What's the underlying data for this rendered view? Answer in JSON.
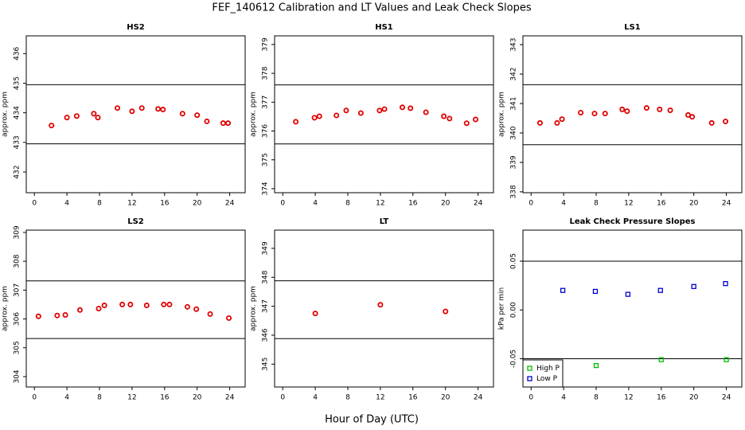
{
  "title": "FEF_140612  Calibration and LT Values and Leak Check Slopes",
  "xlabel": "Hour of Day (UTC)",
  "chart_data": [
    {
      "type": "scatter",
      "title": "HS2",
      "ylabel": "approx. ppm",
      "xlim": [
        -1,
        25.9
      ],
      "xticks": [
        0,
        4,
        8,
        12,
        16,
        20,
        24
      ],
      "ylim": [
        431.3,
        436.6
      ],
      "yticks": [
        432,
        433,
        434,
        435,
        436
      ],
      "hlines": [
        434.95,
        432.95
      ],
      "series": [
        {
          "color": "#e00000",
          "marker": "circle",
          "x": [
            2.1,
            4.0,
            5.2,
            7.3,
            7.8,
            10.2,
            12.0,
            13.2,
            15.2,
            15.8,
            18.2,
            20.0,
            21.2,
            23.2,
            23.8
          ],
          "values": [
            433.57,
            433.84,
            433.89,
            433.97,
            433.84,
            434.16,
            434.05,
            434.16,
            434.13,
            434.11,
            433.97,
            433.92,
            433.71,
            433.65,
            433.65
          ]
        }
      ]
    },
    {
      "type": "scatter",
      "title": "HS1",
      "ylabel": "approx. ppm",
      "xlim": [
        -1,
        25.9
      ],
      "xticks": [
        0,
        4,
        8,
        12,
        16,
        20,
        24
      ],
      "ylim": [
        373.86,
        379.3
      ],
      "yticks": [
        374,
        375,
        376,
        377,
        378,
        379
      ],
      "hlines": [
        377.6,
        375.55
      ],
      "series": [
        {
          "color": "#e00000",
          "marker": "circle",
          "x": [
            1.6,
            3.9,
            4.5,
            6.6,
            7.8,
            9.6,
            11.9,
            12.5,
            14.7,
            15.7,
            17.6,
            19.8,
            20.5,
            22.6,
            23.7
          ],
          "values": [
            376.32,
            376.46,
            376.51,
            376.54,
            376.71,
            376.62,
            376.71,
            376.76,
            376.82,
            376.79,
            376.65,
            376.51,
            376.43,
            376.27,
            376.4
          ]
        }
      ]
    },
    {
      "type": "scatter",
      "title": "LS1",
      "ylabel": "approx. ppm",
      "xlim": [
        -1,
        25.9
      ],
      "xticks": [
        0,
        4,
        8,
        12,
        16,
        20,
        24
      ],
      "ylim": [
        337.97,
        343.3
      ],
      "yticks": [
        338,
        339,
        340,
        341,
        342,
        343
      ],
      "hlines": [
        341.64,
        339.6
      ],
      "series": [
        {
          "color": "#e00000",
          "marker": "circle",
          "x": [
            1.1,
            3.2,
            3.8,
            6.1,
            7.8,
            9.1,
            11.2,
            11.8,
            14.2,
            15.8,
            17.1,
            19.3,
            19.8,
            22.2,
            23.9
          ],
          "values": [
            340.34,
            340.34,
            340.47,
            340.69,
            340.66,
            340.66,
            340.8,
            340.74,
            340.85,
            340.8,
            340.77,
            340.61,
            340.55,
            340.34,
            340.39
          ]
        }
      ]
    },
    {
      "type": "scatter",
      "title": "LS2",
      "ylabel": "approx. ppm",
      "xlim": [
        -1,
        25.9
      ],
      "xticks": [
        0,
        4,
        8,
        12,
        16,
        20,
        24
      ],
      "ylim": [
        303.64,
        309.08
      ],
      "yticks": [
        304,
        305,
        306,
        307,
        308,
        309
      ],
      "hlines": [
        307.32,
        305.32
      ],
      "series": [
        {
          "color": "#e00000",
          "marker": "circle",
          "x": [
            0.5,
            2.8,
            3.8,
            5.6,
            7.9,
            8.6,
            10.8,
            11.8,
            13.8,
            15.9,
            16.6,
            18.8,
            19.9,
            21.6,
            23.9
          ],
          "values": [
            306.09,
            306.12,
            306.14,
            306.31,
            306.36,
            306.47,
            306.5,
            306.5,
            306.47,
            306.5,
            306.5,
            306.42,
            306.34,
            306.17,
            306.03
          ]
        }
      ]
    },
    {
      "type": "scatter",
      "title": "LT",
      "ylabel": "approx. ppm",
      "xlim": [
        -1,
        25.9
      ],
      "xticks": [
        0,
        4,
        8,
        12,
        16,
        20,
        24
      ],
      "ylim": [
        344.21,
        349.63
      ],
      "yticks": [
        345,
        346,
        347,
        348,
        349
      ],
      "hlines": [
        347.88,
        345.88
      ],
      "series": [
        {
          "color": "#e00000",
          "marker": "circle",
          "x": [
            4.0,
            12.0,
            20.0
          ],
          "values": [
            346.75,
            347.05,
            346.82
          ]
        }
      ]
    },
    {
      "type": "scatter",
      "title": "Leak Check Pressure Slopes",
      "ylabel": "kPa per min",
      "xlim": [
        -1,
        25.9
      ],
      "xticks": [
        0,
        4,
        8,
        12,
        16,
        20,
        24
      ],
      "ylim": [
        -0.079,
        0.0818
      ],
      "yticks": [
        -0.05,
        {
          "value": 0,
          "label": "0.00"
        },
        0.05
      ],
      "hlines": [
        0.05,
        -0.05
      ],
      "legend": "bottomleft",
      "series": [
        {
          "name": "High P",
          "color": "#00c000",
          "marker": "square",
          "x": [
            8,
            16,
            24
          ],
          "values": [
            -0.057,
            -0.051,
            -0.051
          ]
        },
        {
          "name": "Low P",
          "color": "#0000d0",
          "marker": "square",
          "x": [
            3.9,
            7.9,
            11.9,
            15.9,
            20.0,
            23.9
          ],
          "values": [
            0.02,
            0.019,
            0.016,
            0.02,
            0.024,
            0.027
          ]
        }
      ]
    }
  ]
}
